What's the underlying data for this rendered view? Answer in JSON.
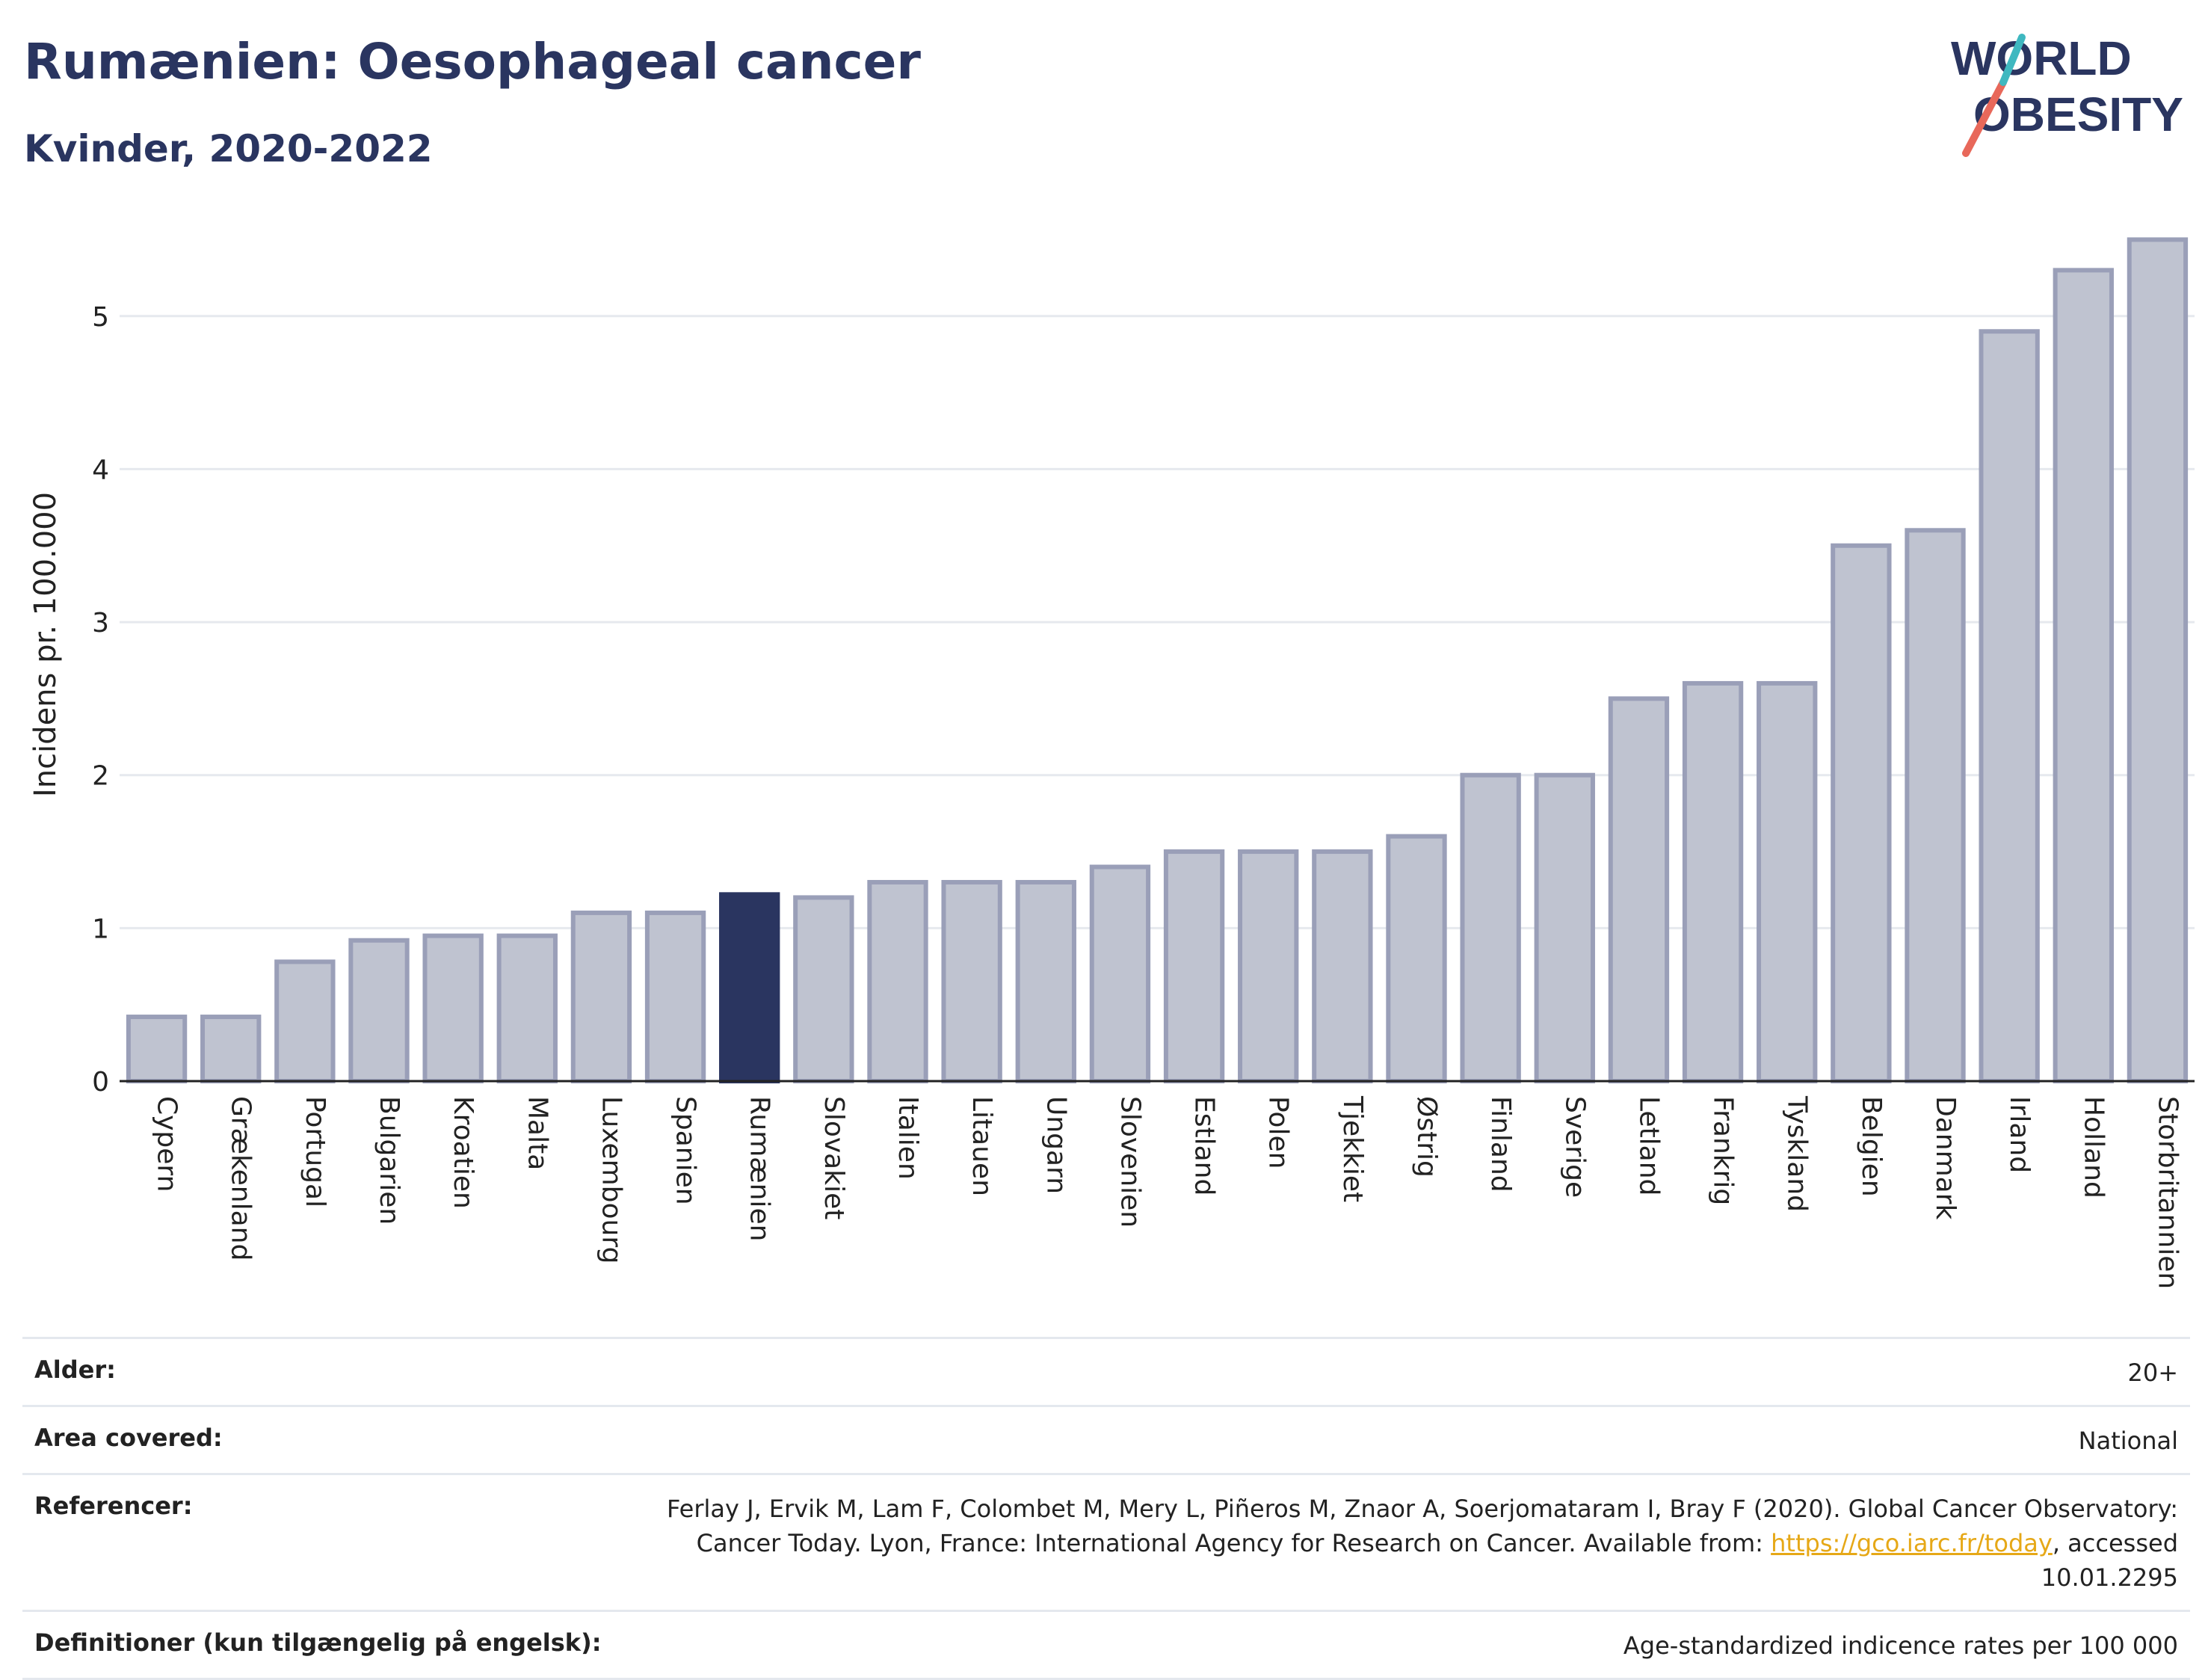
{
  "header": {
    "title": "Rumænien: Oesophageal cancer",
    "subtitle": "Kvinder, 2020-2022"
  },
  "logo": {
    "line1": "WORLD",
    "line2": "OBESITY"
  },
  "chart_data": {
    "type": "bar",
    "ylabel": "Incidens pr. 100.000",
    "xlabel": "",
    "ylim": [
      0,
      5.6
    ],
    "yticks": [
      0,
      1,
      2,
      3,
      4,
      5
    ],
    "grid": true,
    "highlight": "Rumænien",
    "categories": [
      "Cypern",
      "Grækenland",
      "Portugal",
      "Bulgarien",
      "Kroatien",
      "Malta",
      "Luxembourg",
      "Spanien",
      "Rumænien",
      "Slovakiet",
      "Italien",
      "Litauen",
      "Ungarn",
      "Slovenien",
      "Estland",
      "Polen",
      "Tjekkiet",
      "Østrig",
      "Finland",
      "Sverige",
      "Letland",
      "Frankrig",
      "Tyskland",
      "Belgien",
      "Danmark",
      "Irland",
      "Holland",
      "Storbritannien"
    ],
    "values": [
      0.42,
      0.42,
      0.78,
      0.92,
      0.95,
      0.95,
      1.1,
      1.1,
      1.22,
      1.2,
      1.3,
      1.3,
      1.3,
      1.4,
      1.5,
      1.5,
      1.5,
      1.6,
      2.0,
      2.0,
      2.5,
      2.6,
      2.6,
      3.5,
      3.6,
      4.9,
      5.3,
      5.5
    ],
    "colors": {
      "bar": "#bfc3d0",
      "bar_border": "#9a9fb8",
      "highlight": "#2a3560"
    }
  },
  "info": {
    "age_label": "Alder:",
    "age_value": "20+",
    "area_label": "Area covered:",
    "area_value": "National",
    "ref_label": "Referencer:",
    "ref_text_1": "Ferlay J, Ervik M, Lam F, Colombet M, Mery L, Piñeros M, Znaor A, Soerjomataram I, Bray F (2020). Global Cancer Observatory: Cancer Today. Lyon, France: International Agency for Research on Cancer. Available from: ",
    "ref_link": "https://gco.iarc.fr/today",
    "ref_text_2": ", accessed 10.01.2295",
    "def_label": "Definitioner (kun tilgængelig på engelsk):",
    "def_value": "Age-standardized indicence rates per 100 000"
  }
}
